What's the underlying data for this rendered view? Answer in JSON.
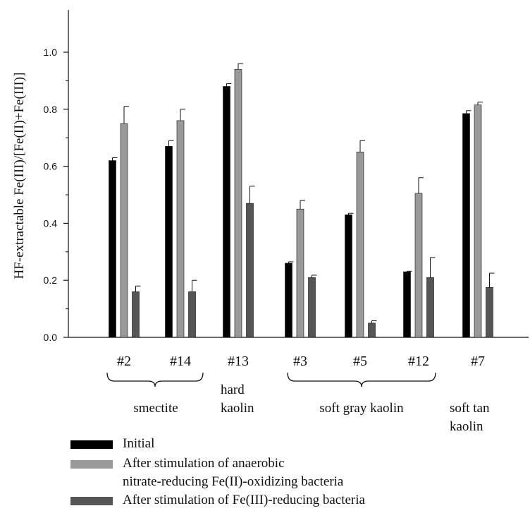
{
  "chart_data": {
    "type": "bar",
    "ylabel": "HF-extractable Fe(III)/[Fe(II)+Fe(III)]",
    "ylim": [
      0,
      1.0
    ],
    "yticks": [
      "0.0",
      "0.2",
      "0.4",
      "0.6",
      "0.8",
      "1.0"
    ],
    "categories": [
      "#2",
      "#14",
      "#13",
      "#3",
      "#5",
      "#12",
      "#7"
    ],
    "series": [
      {
        "name": "Initial",
        "color": "#000000",
        "values": [
          0.62,
          0.67,
          0.88,
          0.26,
          0.43,
          0.23,
          0.785
        ],
        "errors": [
          0.01,
          0.02,
          0.01,
          0.005,
          0.005,
          0.002,
          0.01
        ]
      },
      {
        "name": "After stimulation of anaerobic nitrate-reducing Fe(II)-oxidizing bacteria",
        "color": "#999999",
        "values": [
          0.75,
          0.76,
          0.94,
          0.45,
          0.65,
          0.505,
          0.815
        ],
        "errors": [
          0.06,
          0.04,
          0.02,
          0.03,
          0.04,
          0.055,
          0.01
        ]
      },
      {
        "name": "After stimulation of Fe(III)-reducing bacteria",
        "color": "#555555",
        "values": [
          0.16,
          0.16,
          0.47,
          0.21,
          0.05,
          0.21,
          0.175
        ],
        "errors": [
          0.02,
          0.04,
          0.06,
          0.008,
          0.008,
          0.07,
          0.05
        ]
      }
    ],
    "groups": [
      {
        "label": "smectite",
        "members": [
          "#2",
          "#14"
        ],
        "brace": true
      },
      {
        "label": "hard kaolin",
        "members": [
          "#13"
        ],
        "brace": false
      },
      {
        "label": "soft gray kaolin",
        "members": [
          "#3",
          "#5",
          "#12"
        ],
        "brace": true
      },
      {
        "label": "soft tan kaolin",
        "members": [
          "#7"
        ],
        "brace": false
      }
    ]
  },
  "legend": {
    "items": [
      {
        "label": "Initial",
        "color": "#000000"
      },
      {
        "label": "After stimulation of anaerobic",
        "label2": "nitrate-reducing Fe(II)-oxidizing bacteria",
        "color": "#999999"
      },
      {
        "label": "After stimulation of Fe(III)-reducing bacteria",
        "color": "#555555"
      }
    ]
  }
}
